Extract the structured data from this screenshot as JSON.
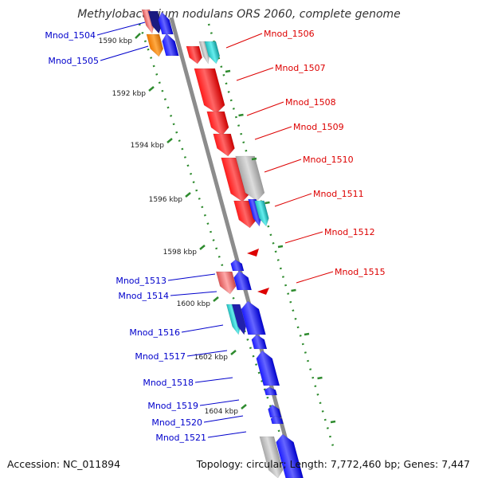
{
  "title": "Methylobacterium nodulans ORS 2060, complete genome",
  "accession": "Accession: NC_011894",
  "topology": "Topology: circular; Length: 7,772,460 bp; Genes: 7,447",
  "colors": {
    "backbone": "#8c8c8c",
    "scale": "#2e8b2e",
    "reverse_label": "#0000cc",
    "forward_label": "#dd0000"
  },
  "scale_ticks": [
    {
      "label": "1590 kbp"
    },
    {
      "label": "1592 kbp"
    },
    {
      "label": "1594 kbp"
    },
    {
      "label": "1596 kbp"
    },
    {
      "label": "1598 kbp"
    },
    {
      "label": "1600 kbp"
    },
    {
      "label": "1602 kbp"
    },
    {
      "label": "1604 kbp"
    }
  ],
  "gene_labels_left": [
    "Mnod_1504",
    "Mnod_1505",
    "Mnod_1513",
    "Mnod_1514",
    "Mnod_1516",
    "Mnod_1517",
    "Mnod_1518",
    "Mnod_1519",
    "Mnod_1520",
    "Mnod_1521"
  ],
  "gene_labels_right": [
    "Mnod_1506",
    "Mnod_1507",
    "Mnod_1508",
    "Mnod_1509",
    "Mnod_1510",
    "Mnod_1511",
    "Mnod_1512",
    "Mnod_1515"
  ]
}
